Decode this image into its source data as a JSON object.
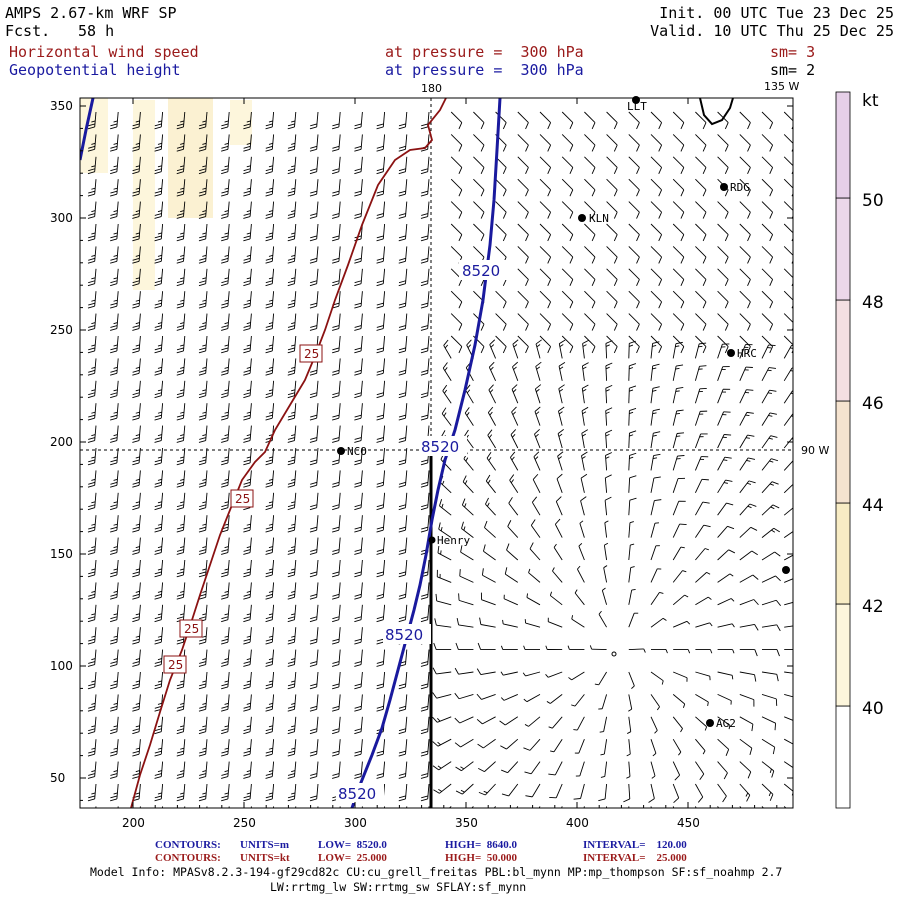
{
  "header": {
    "model": "AMPS 2.67-km WRF SP",
    "forecast_label": "Fcst.",
    "forecast_hours": "58 h",
    "init": "Init. 00 UTC Tue 23 Dec 25",
    "valid": "Valid. 10 UTC Thu 25 Dec 25"
  },
  "fields": {
    "shaded": {
      "name": "Horizontal wind speed",
      "pressure_text": "at pressure =  300 hPa",
      "smooth": "sm= 3"
    },
    "contour": {
      "name": "Geopotential height",
      "pressure_text": "at pressure =  300 hPa",
      "smooth": "sm= 2"
    }
  },
  "map": {
    "longitude_labels": {
      "top_180": "180",
      "top_135w": "135 W",
      "right_90w": "90 W"
    },
    "x_ticks": [
      "200",
      "250",
      "300",
      "350",
      "400",
      "450"
    ],
    "y_ticks": [
      "350",
      "300",
      "250",
      "200",
      "150",
      "100",
      "50"
    ],
    "contour_labels": [
      "8520",
      "8520",
      "8520",
      "8520"
    ],
    "speed_labels": [
      "25",
      "25",
      "25",
      "25"
    ],
    "stations": [
      "LLT",
      "RDG",
      "KLN",
      "HRC",
      "NCO",
      "Henry",
      "AG2"
    ]
  },
  "colorbar": {
    "unit": "kt",
    "levels": [
      "50",
      "48",
      "46",
      "44",
      "42",
      "40"
    ],
    "colors": [
      "#ffffff",
      "#fdf6dc",
      "#f8ecc4",
      "#f5e3cf",
      "#f4dfe2",
      "#ecd7ea",
      "#e6cfe8"
    ]
  },
  "footer": {
    "row1": {
      "label": "CONTOURS:",
      "units": "UNITS=m",
      "low": "LOW=  8520.0",
      "high": "HIGH=  8640.0",
      "interval": "INTERVAL=    120.00"
    },
    "row2": {
      "label": "CONTOURS:",
      "units": "UNITS=kt",
      "low": "LOW=  25.000",
      "high": "HIGH=  50.000",
      "interval": "INTERVAL=    25.000"
    },
    "model_info_1": "Model Info: MPASv8.2.3-194-gf29cd82c CU:cu_grell_freitas PBL:bl_mynn MP:mp_thompson SF:sf_noahmp 2.7",
    "model_info_2": "LW:rrtmg_lw SW:rrtmg_sw SFLAY:sf_mynn"
  }
}
